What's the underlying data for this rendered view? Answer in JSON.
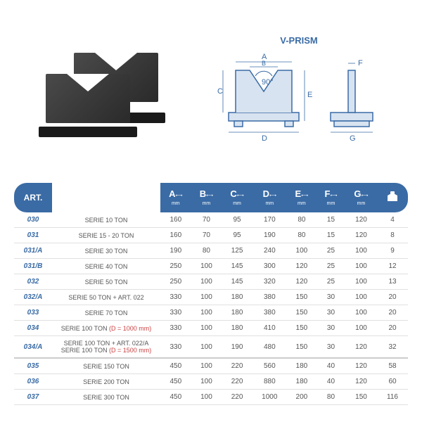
{
  "product_title": "V-PRISM",
  "diagram": {
    "labels": [
      "A",
      "B",
      "C",
      "D",
      "E",
      "F",
      "G"
    ],
    "angle": "90°",
    "stroke_color": "#3a6ba5",
    "fill_color": "#d7e3f0"
  },
  "table": {
    "headers": [
      {
        "label": "ART.",
        "unit": ""
      },
      {
        "label": "",
        "unit": ""
      },
      {
        "label": "A",
        "unit": "mm"
      },
      {
        "label": "B",
        "unit": "mm"
      },
      {
        "label": "C",
        "unit": "mm"
      },
      {
        "label": "D",
        "unit": "mm"
      },
      {
        "label": "E",
        "unit": "mm"
      },
      {
        "label": "F",
        "unit": "mm"
      },
      {
        "label": "G",
        "unit": "mm"
      },
      {
        "label": "KG",
        "unit": ""
      }
    ],
    "groups": [
      {
        "rows": [
          {
            "art": "030",
            "desc": "SERIE 10 TON",
            "a": "160",
            "b": "70",
            "c": "95",
            "d": "170",
            "e": "80",
            "f": "15",
            "g": "120",
            "kg": "4"
          },
          {
            "art": "031",
            "desc": "SERIE 15 - 20 TON",
            "a": "160",
            "b": "70",
            "c": "95",
            "d": "190",
            "e": "80",
            "f": "15",
            "g": "120",
            "kg": "8"
          },
          {
            "art": "031/A",
            "desc": "SERIE 30 TON",
            "a": "190",
            "b": "80",
            "c": "125",
            "d": "240",
            "e": "100",
            "f": "25",
            "g": "100",
            "kg": "9"
          },
          {
            "art": "031/B",
            "desc": "SERIE 40 TON",
            "a": "250",
            "b": "100",
            "c": "145",
            "d": "300",
            "e": "120",
            "f": "25",
            "g": "100",
            "kg": "12"
          },
          {
            "art": "032",
            "desc": "SERIE 50 TON",
            "a": "250",
            "b": "100",
            "c": "145",
            "d": "320",
            "e": "120",
            "f": "25",
            "g": "100",
            "kg": "13"
          },
          {
            "art": "032/A",
            "desc": "SERIE 50 TON + ART. 022",
            "a": "330",
            "b": "100",
            "c": "180",
            "d": "380",
            "e": "150",
            "f": "30",
            "g": "100",
            "kg": "20"
          },
          {
            "art": "033",
            "desc": "SERIE 70 TON",
            "a": "330",
            "b": "100",
            "c": "180",
            "d": "380",
            "e": "150",
            "f": "30",
            "g": "100",
            "kg": "20"
          },
          {
            "art": "034",
            "desc": "SERIE 100 TON <span class='red'>(D = 1000 mm)</span>",
            "a": "330",
            "b": "100",
            "c": "180",
            "d": "410",
            "e": "150",
            "f": "30",
            "g": "100",
            "kg": "20"
          },
          {
            "art": "034/A",
            "desc": "SERIE 100 TON + ART. 022/A<br>SERIE 100 TON <span class='red'>(D = 1500 mm)</span>",
            "a": "330",
            "b": "100",
            "c": "190",
            "d": "480",
            "e": "150",
            "f": "30",
            "g": "120",
            "kg": "32"
          }
        ]
      },
      {
        "rows": [
          {
            "art": "035",
            "desc": "SERIE 150 TON",
            "a": "450",
            "b": "100",
            "c": "220",
            "d": "560",
            "e": "180",
            "f": "40",
            "g": "120",
            "kg": "58"
          },
          {
            "art": "036",
            "desc": "SERIE 200 TON",
            "a": "450",
            "b": "100",
            "c": "220",
            "d": "880",
            "e": "180",
            "f": "40",
            "g": "120",
            "kg": "60"
          },
          {
            "art": "037",
            "desc": "SERIE 300 TON",
            "a": "450",
            "b": "100",
            "c": "220",
            "d": "1000",
            "e": "200",
            "f": "80",
            "g": "150",
            "kg": "116"
          }
        ]
      }
    ]
  }
}
